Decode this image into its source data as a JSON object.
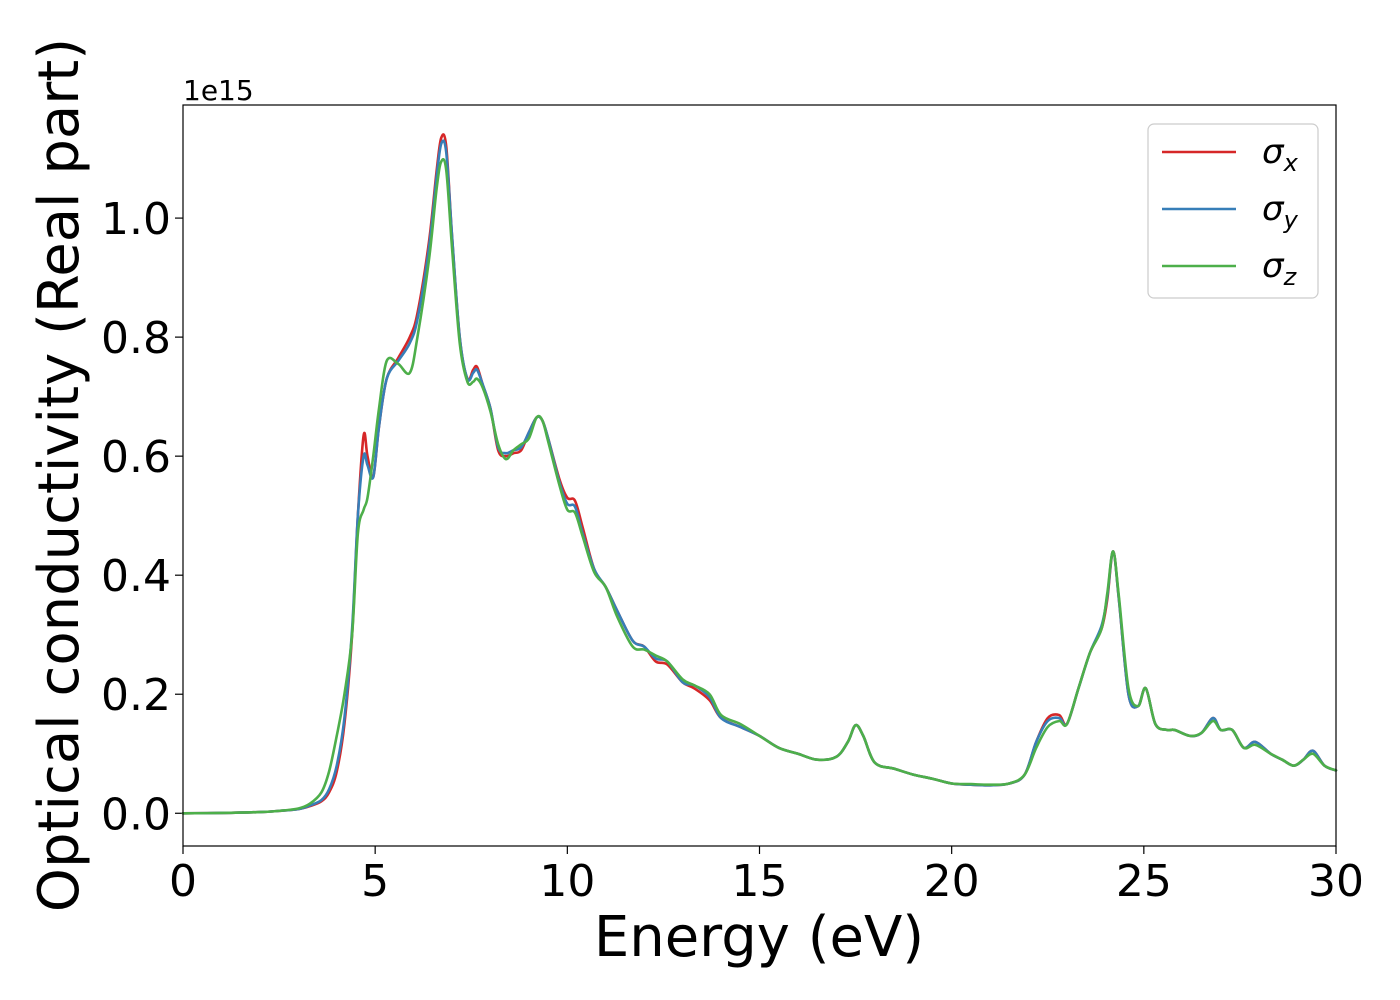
{
  "chart_data": {
    "type": "line",
    "xlabel": "Energy (eV)",
    "ylabel": "Optical conductivity (Real part)",
    "y_offset_text": "1e15",
    "y_scale_factor": 1000000000000000.0,
    "xlim": [
      0,
      30
    ],
    "ylim": [
      -0.055,
      1.19
    ],
    "x_ticks": [
      0,
      5,
      10,
      15,
      20,
      25,
      30
    ],
    "y_ticks": [
      0.0,
      0.2,
      0.4,
      0.6,
      0.8,
      1.0
    ],
    "x_tick_labels": [
      "0",
      "5",
      "10",
      "15",
      "20",
      "25",
      "30"
    ],
    "y_tick_labels": [
      "0.0",
      "0.2",
      "0.4",
      "0.6",
      "0.8",
      "1.0"
    ],
    "grid": false,
    "legend_position": "top-right",
    "series": [
      {
        "name": "σx",
        "legend_symbol": "σ",
        "legend_subscript": "x",
        "color": "#d62728",
        "x": [
          0,
          1,
          2,
          2.5,
          3,
          3.3,
          3.6,
          3.8,
          4,
          4.2,
          4.4,
          4.55,
          4.7,
          4.8,
          4.95,
          5.1,
          5.3,
          5.6,
          5.9,
          6.1,
          6.4,
          6.6,
          6.72,
          6.85,
          7.0,
          7.2,
          7.4,
          7.55,
          7.65,
          7.8,
          8.0,
          8.2,
          8.4,
          8.6,
          8.8,
          9.0,
          9.2,
          9.35,
          9.5,
          9.8,
          10.0,
          10.2,
          10.4,
          10.7,
          11.0,
          11.3,
          11.7,
          12.0,
          12.3,
          12.6,
          13.0,
          13.3,
          13.7,
          14.0,
          14.5,
          15.0,
          15.5,
          16.0,
          16.5,
          17.0,
          17.3,
          17.5,
          17.7,
          18.0,
          18.5,
          19.0,
          19.5,
          20.0,
          20.5,
          21.0,
          21.5,
          21.9,
          22.2,
          22.5,
          22.8,
          23.0,
          23.3,
          23.6,
          23.9,
          24.05,
          24.2,
          24.35,
          24.6,
          24.85,
          25.05,
          25.3,
          25.6,
          25.8,
          26.2,
          26.5,
          26.8,
          27.0,
          27.3,
          27.6,
          27.9,
          28.3,
          28.6,
          28.9,
          29.15,
          29.4,
          29.7,
          30.0
        ],
        "y": [
          0,
          0.0005,
          0.002,
          0.004,
          0.007,
          0.012,
          0.02,
          0.035,
          0.07,
          0.15,
          0.3,
          0.5,
          0.635,
          0.6,
          0.565,
          0.65,
          0.73,
          0.765,
          0.8,
          0.84,
          0.96,
          1.08,
          1.135,
          1.12,
          0.97,
          0.8,
          0.73,
          0.745,
          0.75,
          0.72,
          0.68,
          0.61,
          0.6,
          0.605,
          0.61,
          0.64,
          0.665,
          0.66,
          0.63,
          0.56,
          0.53,
          0.525,
          0.48,
          0.41,
          0.38,
          0.34,
          0.29,
          0.28,
          0.255,
          0.25,
          0.22,
          0.21,
          0.19,
          0.16,
          0.145,
          0.13,
          0.11,
          0.1,
          0.09,
          0.095,
          0.12,
          0.148,
          0.13,
          0.085,
          0.075,
          0.065,
          0.058,
          0.05,
          0.048,
          0.047,
          0.05,
          0.065,
          0.12,
          0.16,
          0.165,
          0.15,
          0.21,
          0.27,
          0.31,
          0.36,
          0.44,
          0.36,
          0.2,
          0.18,
          0.21,
          0.15,
          0.14,
          0.14,
          0.13,
          0.135,
          0.16,
          0.14,
          0.14,
          0.11,
          0.12,
          0.1,
          0.09,
          0.08,
          0.09,
          0.105,
          0.08,
          0.072
        ]
      },
      {
        "name": "σy",
        "legend_symbol": "σ",
        "legend_subscript": "y",
        "color": "#377eb8",
        "x": [
          0,
          1,
          2,
          2.5,
          3,
          3.3,
          3.6,
          3.8,
          4,
          4.2,
          4.4,
          4.55,
          4.7,
          4.8,
          4.95,
          5.1,
          5.3,
          5.6,
          5.9,
          6.1,
          6.4,
          6.6,
          6.72,
          6.85,
          7.0,
          7.2,
          7.4,
          7.55,
          7.65,
          7.8,
          8.0,
          8.2,
          8.4,
          8.6,
          8.8,
          9.0,
          9.2,
          9.35,
          9.5,
          9.8,
          10.0,
          10.2,
          10.4,
          10.7,
          11.0,
          11.3,
          11.7,
          12.0,
          12.3,
          12.6,
          13.0,
          13.3,
          13.7,
          14.0,
          14.5,
          15.0,
          15.5,
          16.0,
          16.5,
          17.0,
          17.3,
          17.5,
          17.7,
          18.0,
          18.5,
          19.0,
          19.5,
          20.0,
          20.5,
          21.0,
          21.5,
          21.9,
          22.2,
          22.5,
          22.8,
          23.0,
          23.3,
          23.6,
          23.9,
          24.05,
          24.2,
          24.35,
          24.6,
          24.85,
          25.05,
          25.3,
          25.6,
          25.8,
          26.2,
          26.5,
          26.8,
          27.0,
          27.3,
          27.6,
          27.9,
          28.3,
          28.6,
          28.9,
          29.15,
          29.4,
          29.7,
          30.0
        ],
        "y": [
          0,
          0.0005,
          0.002,
          0.004,
          0.007,
          0.013,
          0.022,
          0.04,
          0.08,
          0.16,
          0.31,
          0.5,
          0.6,
          0.585,
          0.565,
          0.65,
          0.73,
          0.76,
          0.79,
          0.83,
          0.95,
          1.07,
          1.125,
          1.11,
          0.97,
          0.8,
          0.73,
          0.74,
          0.745,
          0.72,
          0.68,
          0.615,
          0.605,
          0.61,
          0.615,
          0.64,
          0.665,
          0.66,
          0.63,
          0.555,
          0.52,
          0.515,
          0.47,
          0.41,
          0.38,
          0.34,
          0.29,
          0.28,
          0.26,
          0.255,
          0.22,
          0.215,
          0.195,
          0.16,
          0.145,
          0.13,
          0.11,
          0.1,
          0.09,
          0.095,
          0.12,
          0.148,
          0.13,
          0.085,
          0.075,
          0.065,
          0.058,
          0.05,
          0.048,
          0.047,
          0.05,
          0.065,
          0.12,
          0.155,
          0.16,
          0.15,
          0.21,
          0.27,
          0.315,
          0.365,
          0.44,
          0.36,
          0.2,
          0.18,
          0.21,
          0.15,
          0.14,
          0.14,
          0.13,
          0.135,
          0.16,
          0.14,
          0.14,
          0.11,
          0.12,
          0.1,
          0.09,
          0.08,
          0.09,
          0.105,
          0.08,
          0.072
        ]
      },
      {
        "name": "σz",
        "legend_symbol": "σ",
        "legend_subscript": "z",
        "color": "#4daf4a",
        "x": [
          0,
          1,
          2,
          2.5,
          3,
          3.3,
          3.6,
          3.8,
          4,
          4.2,
          4.4,
          4.55,
          4.7,
          4.8,
          4.95,
          5.1,
          5.3,
          5.6,
          5.9,
          6.1,
          6.4,
          6.6,
          6.72,
          6.85,
          7.0,
          7.2,
          7.4,
          7.55,
          7.65,
          7.8,
          8.0,
          8.2,
          8.4,
          8.6,
          8.8,
          9.0,
          9.2,
          9.35,
          9.5,
          9.8,
          10.0,
          10.2,
          10.4,
          10.7,
          11.0,
          11.3,
          11.7,
          12.0,
          12.3,
          12.6,
          13.0,
          13.3,
          13.7,
          14.0,
          14.5,
          15.0,
          15.5,
          16.0,
          16.5,
          17.0,
          17.3,
          17.5,
          17.7,
          18.0,
          18.5,
          19.0,
          19.5,
          20.0,
          20.5,
          21.0,
          21.5,
          21.9,
          22.2,
          22.5,
          22.8,
          23.0,
          23.3,
          23.6,
          23.9,
          24.05,
          24.2,
          24.35,
          24.6,
          24.85,
          25.05,
          25.3,
          25.6,
          25.8,
          26.2,
          26.5,
          26.8,
          27.0,
          27.3,
          27.6,
          27.9,
          28.3,
          28.6,
          28.9,
          29.15,
          29.4,
          29.7,
          30.0
        ],
        "y": [
          0,
          0.0005,
          0.002,
          0.004,
          0.008,
          0.016,
          0.035,
          0.07,
          0.13,
          0.2,
          0.3,
          0.47,
          0.51,
          0.53,
          0.6,
          0.68,
          0.76,
          0.755,
          0.74,
          0.8,
          0.93,
          1.05,
          1.095,
          1.08,
          0.95,
          0.79,
          0.725,
          0.725,
          0.73,
          0.715,
          0.675,
          0.62,
          0.595,
          0.61,
          0.62,
          0.63,
          0.665,
          0.66,
          0.625,
          0.55,
          0.51,
          0.505,
          0.465,
          0.405,
          0.38,
          0.33,
          0.28,
          0.275,
          0.265,
          0.255,
          0.225,
          0.215,
          0.2,
          0.165,
          0.15,
          0.13,
          0.11,
          0.1,
          0.09,
          0.095,
          0.12,
          0.148,
          0.13,
          0.085,
          0.075,
          0.065,
          0.058,
          0.05,
          0.049,
          0.048,
          0.05,
          0.065,
          0.11,
          0.145,
          0.155,
          0.15,
          0.21,
          0.27,
          0.31,
          0.37,
          0.44,
          0.365,
          0.21,
          0.18,
          0.21,
          0.15,
          0.14,
          0.14,
          0.13,
          0.135,
          0.155,
          0.14,
          0.14,
          0.11,
          0.115,
          0.1,
          0.09,
          0.08,
          0.09,
          0.1,
          0.08,
          0.072
        ]
      }
    ]
  }
}
